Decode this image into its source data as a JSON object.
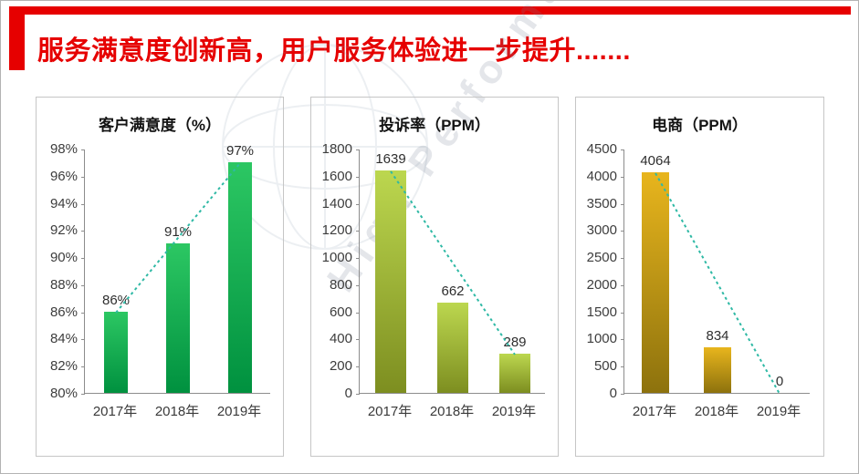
{
  "slide": {
    "title": "服务满意度创新高，用户服务体验进一步提升.......",
    "accent_color": "#e60000"
  },
  "watermark": {
    "text": "High Performance"
  },
  "chart_data": [
    {
      "type": "bar",
      "title": "客户满意度（%）",
      "categories": [
        "2017年",
        "2018年",
        "2019年"
      ],
      "values": [
        86,
        91,
        97
      ],
      "value_labels": [
        "86%",
        "91%",
        "97%"
      ],
      "ylim": [
        80,
        98
      ],
      "ytick_step": 2,
      "ytick_labels": [
        "98%",
        "96%",
        "94%",
        "92%",
        "90%",
        "88%",
        "86%",
        "84%",
        "82%",
        "80%"
      ],
      "grid": "off",
      "legend": "none",
      "bar_color_top": "#2cc763",
      "bar_color_bottom": "#00913f",
      "trend_color": "#2fb9a5",
      "trend": "dotted line from first bar top to last bar top"
    },
    {
      "type": "bar",
      "title": "投诉率（PPM）",
      "categories": [
        "2017年",
        "2018年",
        "2019年"
      ],
      "values": [
        1639,
        662,
        289
      ],
      "value_labels": [
        "1639",
        "662",
        "289"
      ],
      "ylim": [
        0,
        1800
      ],
      "ytick_step": 200,
      "ytick_labels": [
        "1800",
        "1600",
        "1400",
        "1200",
        "1000",
        "800",
        "600",
        "400",
        "200",
        "0"
      ],
      "grid": "off",
      "legend": "none",
      "bar_color_top": "#bcd74f",
      "bar_color_bottom": "#7d8e20",
      "trend_color": "#2fb9a5",
      "trend": "dotted line from first bar top to last bar top"
    },
    {
      "type": "bar",
      "title": "电商（PPM）",
      "categories": [
        "2017年",
        "2018年",
        "2019年"
      ],
      "values": [
        4064,
        834,
        0
      ],
      "value_labels": [
        "4064",
        "834",
        "0"
      ],
      "ylim": [
        0,
        4500
      ],
      "ytick_step": 500,
      "ytick_labels": [
        "4500",
        "4000",
        "3500",
        "3000",
        "2500",
        "2000",
        "1500",
        "1000",
        "500",
        "0"
      ],
      "grid": "off",
      "legend": "none",
      "bar_color_top": "#e8b51d",
      "bar_color_bottom": "#8d720d",
      "trend_color": "#2fb9a5",
      "trend": "dotted line from first bar top down to zero at last category"
    }
  ]
}
